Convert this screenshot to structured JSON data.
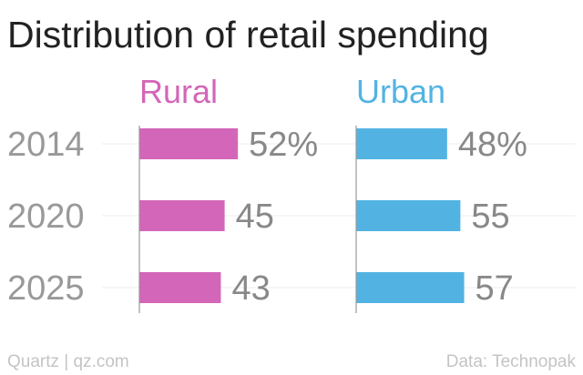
{
  "title": "Distribution of retail spending",
  "source_left": "Quartz | qz.com",
  "source_right": "Data: Technopak",
  "colors": {
    "Rural": "#d366b8",
    "Urban": "#52b3e3"
  },
  "chart_data": {
    "type": "bar",
    "orientation": "horizontal",
    "title": "Distribution of retail spending",
    "categories": [
      "2014",
      "2020",
      "2025"
    ],
    "series": [
      {
        "name": "Rural",
        "values": [
          52,
          45,
          43
        ],
        "labels": [
          "52%",
          "45",
          "43"
        ]
      },
      {
        "name": "Urban",
        "values": [
          48,
          55,
          57
        ],
        "labels": [
          "48%",
          "55",
          "57"
        ]
      }
    ],
    "unit": "%",
    "xlim": [
      0,
      100
    ],
    "grid": true,
    "legend": "series names above panels"
  }
}
